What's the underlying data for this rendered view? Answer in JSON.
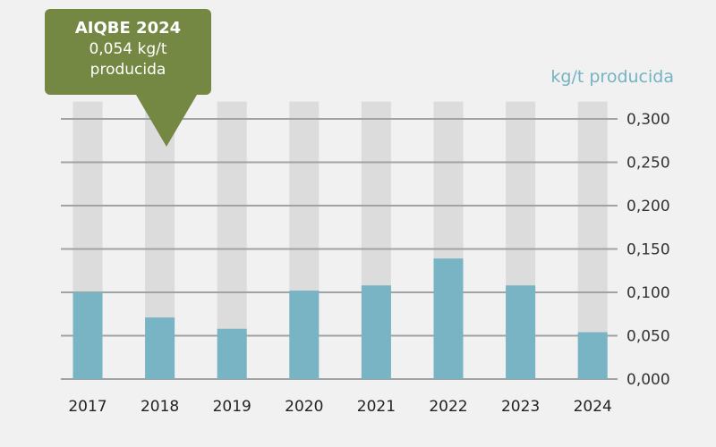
{
  "chart_data": {
    "type": "bar",
    "categories": [
      "2017",
      "2018",
      "2019",
      "2020",
      "2021",
      "2022",
      "2023",
      "2024"
    ],
    "values": [
      0.1,
      0.071,
      0.058,
      0.102,
      0.108,
      0.139,
      0.108,
      0.054
    ],
    "background_max": 0.32,
    "ylim": [
      0,
      0.3
    ],
    "yticks": [
      "0,000",
      "0,050",
      "0,100",
      "0,150",
      "0,200",
      "0,250",
      "0,300"
    ],
    "ylabel": "kg/t producida",
    "y_axis_side": "right",
    "grid": true,
    "colors": {
      "bar": "#78b4c4",
      "background_bar": "#dcdcdc",
      "grid": "#9ea3a6",
      "axis_text": "#333333",
      "unit": "#74b3c3",
      "tooltip": "#748844"
    }
  },
  "tooltip": {
    "title": "AIQBE 2024",
    "line1": "0,054 kg/t",
    "line2": "producida"
  }
}
